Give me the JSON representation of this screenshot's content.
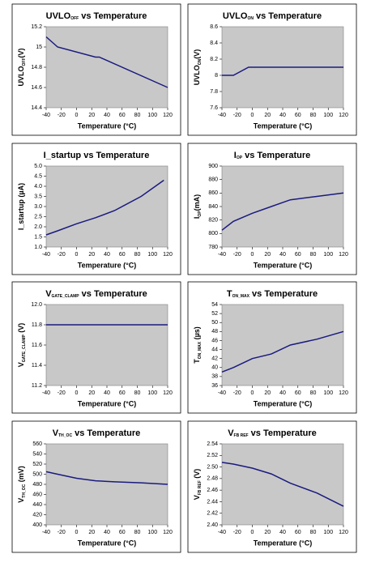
{
  "chart_data": [
    {
      "type": "line",
      "title": {
        "main": "UVLO",
        "sub": "OFF",
        "rest": " vs Temperature"
      },
      "ylabel": {
        "main": "UVLO",
        "sub": "OFF",
        "rest": "(V)"
      },
      "xlabel": "Temperature (°C)",
      "xlim": [
        -40,
        120
      ],
      "xticks": [
        -40,
        -20,
        0,
        20,
        40,
        60,
        80,
        100,
        120
      ],
      "ylim": [
        14.4,
        15.2
      ],
      "yticks": [
        14.4,
        14.6,
        14.8,
        15,
        15.2
      ],
      "color": "#1a1a80",
      "x": [
        -40,
        -25,
        25,
        30,
        120
      ],
      "values": [
        15.1,
        15.0,
        14.9,
        14.9,
        14.6
      ]
    },
    {
      "type": "line",
      "title": {
        "main": "UVLO",
        "sub": "ON",
        "rest": " vs Temperature"
      },
      "ylabel": {
        "main": "UVLO",
        "sub": "ON",
        "rest": "(V)"
      },
      "xlabel": "Temperature (°C)",
      "xlim": [
        -40,
        120
      ],
      "xticks": [
        -40,
        -20,
        0,
        20,
        40,
        60,
        80,
        100,
        120
      ],
      "ylim": [
        7.6,
        8.6
      ],
      "yticks": [
        7.6,
        7.8,
        8,
        8.2,
        8.4,
        8.6
      ],
      "color": "#1a1a80",
      "x": [
        -40,
        -25,
        -5,
        120
      ],
      "values": [
        8.0,
        8.0,
        8.1,
        8.1
      ]
    },
    {
      "type": "line",
      "title": {
        "main": "I_startup",
        "rest": " vs Temperature"
      },
      "ylabel": {
        "main": "I_startup",
        "rest": " (µA)"
      },
      "xlabel": "Temperature   (°C)",
      "xlim": [
        -40,
        120
      ],
      "xticks": [
        -40,
        -20,
        0,
        20,
        40,
        60,
        80,
        100,
        120
      ],
      "ylim": [
        1,
        5
      ],
      "yticks": [
        {
          "value": 1,
          "label": "1.0"
        },
        1.5,
        {
          "value": 2,
          "label": "2.0"
        },
        2.5,
        {
          "value": 3,
          "label": "3.0"
        },
        3.5,
        {
          "value": 4,
          "label": "4.0"
        },
        4.5,
        {
          "value": 5,
          "label": "5.0"
        }
      ],
      "color": "#1a1a80",
      "x": [
        -40,
        -25,
        0,
        25,
        50,
        85,
        115
      ],
      "values": [
        1.6,
        1.8,
        2.15,
        2.45,
        2.8,
        3.5,
        4.3
      ]
    },
    {
      "type": "line",
      "title": {
        "main": "I",
        "sub": "OP",
        "rest": "  vs Temperature"
      },
      "ylabel": {
        "main": "I",
        "sub": "OP",
        "rest": "(mA)"
      },
      "xlabel": "Temperature   (°C)",
      "xlim": [
        -40,
        120
      ],
      "xticks": [
        -40,
        -20,
        0,
        20,
        40,
        60,
        80,
        100,
        120
      ],
      "ylim": [
        780,
        900
      ],
      "yticks": [
        780,
        800,
        820,
        840,
        860,
        880,
        900
      ],
      "color": "#1a1a80",
      "x": [
        -40,
        -25,
        0,
        25,
        50,
        85,
        120
      ],
      "values": [
        805,
        818,
        830,
        840,
        850,
        855,
        860
      ]
    },
    {
      "type": "line",
      "title": {
        "main": "V",
        "sub": "GATE_CLAMP",
        "rest": "  vs Temperature"
      },
      "ylabel": {
        "main": "V",
        "sub": "GATE_CLAMP",
        "rest": " (V)"
      },
      "xlabel": "Temperature (°C)",
      "xlim": [
        -40,
        120
      ],
      "xticks": [
        -40,
        -20,
        0,
        20,
        40,
        60,
        80,
        100,
        120
      ],
      "ylim": [
        11.2,
        12
      ],
      "yticks": [
        11.2,
        11.4,
        11.6,
        11.8,
        {
          "value": 12,
          "label": "12.0"
        }
      ],
      "color": "#1a1a80",
      "x": [
        -40,
        120
      ],
      "values": [
        11.8,
        11.8
      ]
    },
    {
      "type": "line",
      "title": {
        "main": "T",
        "sub": "ON_MAX",
        "rest": "  vs Temperature"
      },
      "ylabel": {
        "main": "T",
        "sub": "ON_MAX",
        "rest": " (µs)"
      },
      "xlabel": "Temperature (°C)",
      "xlim": [
        -40,
        120
      ],
      "xticks": [
        -40,
        -20,
        0,
        20,
        40,
        60,
        80,
        100,
        120
      ],
      "ylim": [
        36,
        54
      ],
      "yticks": [
        36,
        38,
        40,
        42,
        44,
        46,
        48,
        50,
        52,
        54
      ],
      "color": "#1a1a80",
      "x": [
        -40,
        -25,
        0,
        25,
        50,
        85,
        120
      ],
      "values": [
        39,
        40,
        42,
        43,
        45,
        46.3,
        48
      ]
    },
    {
      "type": "line",
      "title": {
        "main": "V",
        "sub": "TH_OC",
        "rest": "  vs Temperature"
      },
      "ylabel": {
        "main": "V",
        "sub": "TH_OC",
        "rest": " (mV)"
      },
      "xlabel": "Temperature (°C)",
      "xlim": [
        -40,
        120
      ],
      "xticks": [
        -40,
        -20,
        0,
        20,
        40,
        60,
        80,
        100,
        120
      ],
      "ylim": [
        400,
        560
      ],
      "yticks": [
        400,
        420,
        440,
        460,
        480,
        500,
        520,
        540,
        560
      ],
      "color": "#1a1a80",
      "x": [
        -40,
        -25,
        0,
        25,
        50,
        85,
        120
      ],
      "values": [
        505,
        500,
        492,
        487,
        485,
        483,
        480
      ]
    },
    {
      "type": "line",
      "title": {
        "main": "V",
        "sub": "FB REF",
        "rest": "  vs Temperature"
      },
      "ylabel": {
        "main": "V",
        "sub": "FB REF",
        "rest": " (V)"
      },
      "xlabel": "Temperature (°C)",
      "xlim": [
        -40,
        120
      ],
      "xticks": [
        -40,
        -20,
        0,
        20,
        40,
        60,
        80,
        100,
        120
      ],
      "ylim": [
        2.4,
        2.54
      ],
      "yticks": [
        {
          "value": 2.4,
          "label": "2.40"
        },
        2.42,
        2.44,
        2.46,
        2.48,
        {
          "value": 2.5,
          "label": "2.50"
        },
        2.52,
        2.54
      ],
      "color": "#1a1a80",
      "x": [
        -40,
        -25,
        0,
        25,
        50,
        85,
        120
      ],
      "values": [
        2.508,
        2.505,
        2.498,
        2.488,
        2.472,
        2.455,
        2.432
      ]
    }
  ]
}
